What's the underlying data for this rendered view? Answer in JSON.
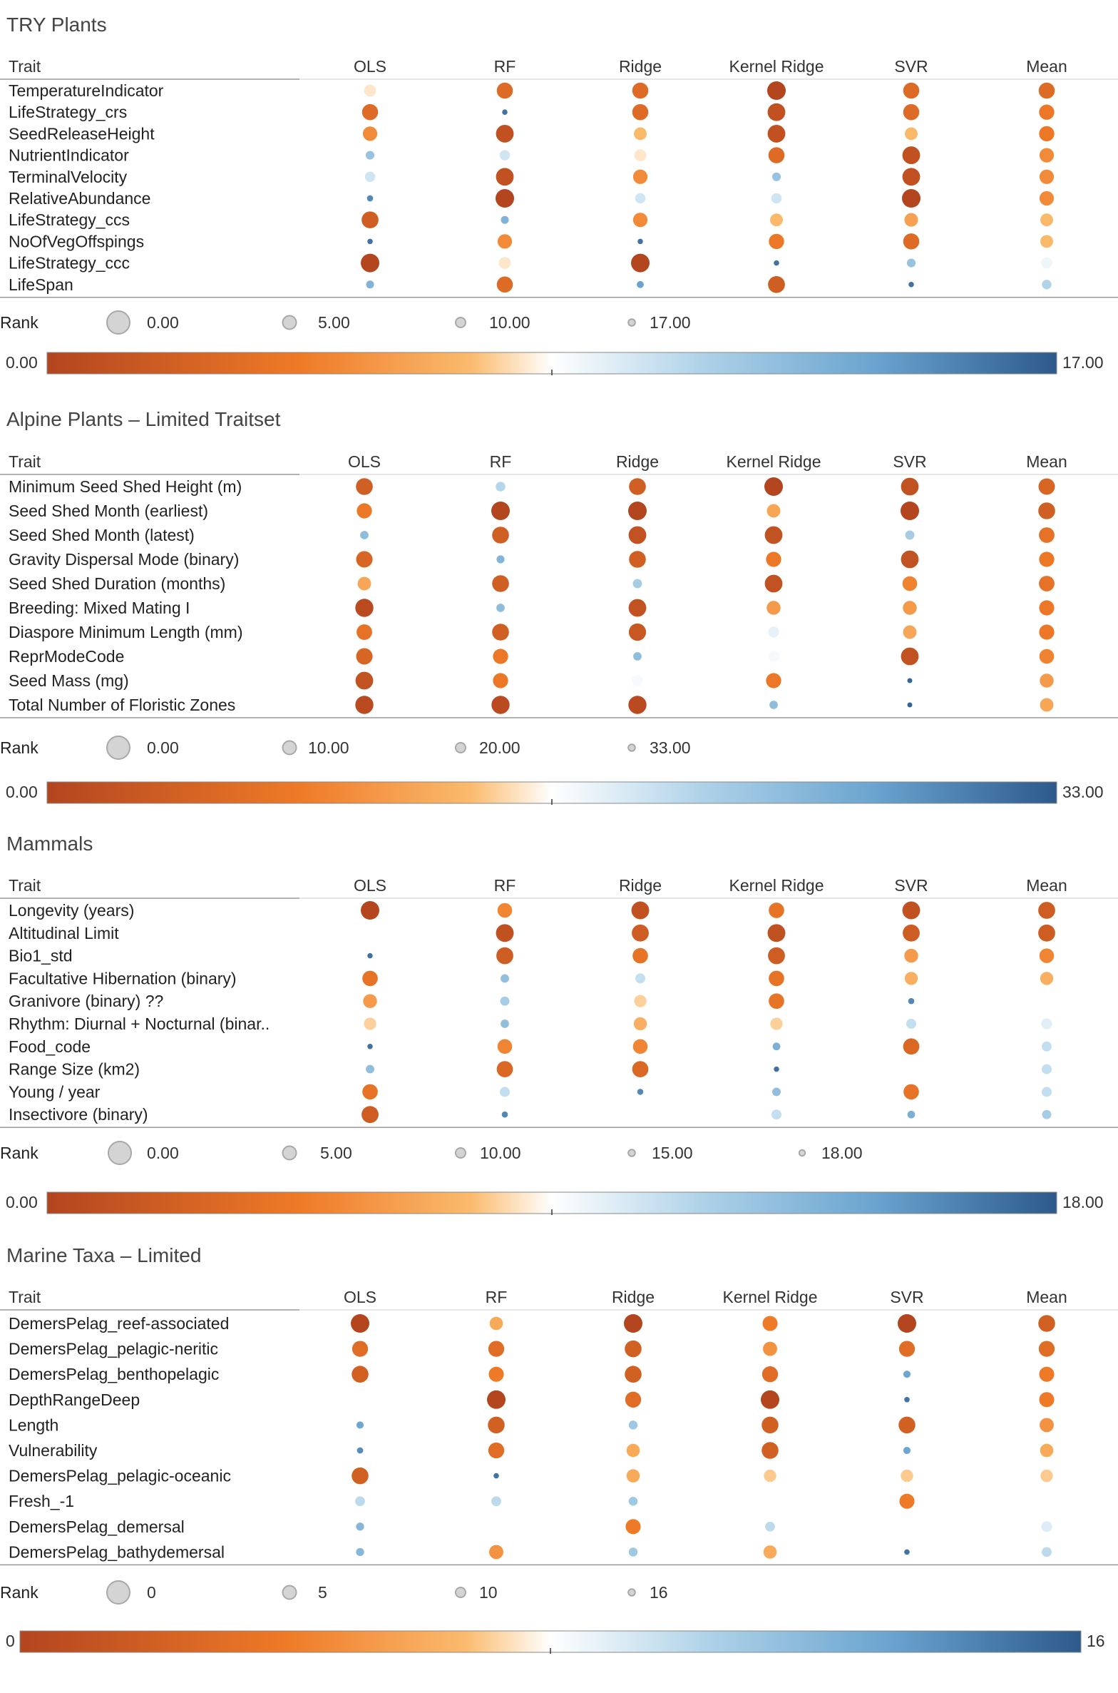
{
  "chart_data": [
    {
      "type": "table",
      "title": "TRY Plants",
      "header_trait": "Trait",
      "columns": [
        "OLS",
        "RF",
        "Ridge",
        "Kernel Ridge",
        "SVR",
        "Mean"
      ],
      "rows": [
        "TemperatureIndicator",
        "LifeStrategy_crs",
        "SeedReleaseHeight",
        "NutrientIndicator",
        "TerminalVelocity",
        "RelativeAbundance",
        "LifeStrategy_ccs",
        "NoOfVegOffspings",
        "LifeStrategy_ccc",
        "LifeSpan"
      ],
      "values": [
        [
          8,
          3,
          3,
          0,
          3,
          3
        ],
        [
          3,
          16,
          3,
          1,
          3,
          4
        ],
        [
          5,
          1,
          7,
          1,
          7,
          4
        ],
        [
          12,
          10,
          8,
          3,
          1,
          5
        ],
        [
          10,
          1,
          5,
          12,
          1,
          5
        ],
        [
          15,
          0,
          10,
          10,
          0,
          5
        ],
        [
          2,
          13,
          5,
          7,
          6,
          7
        ],
        [
          16,
          5,
          16,
          4,
          3,
          7
        ],
        [
          0,
          8,
          0,
          16,
          12,
          9
        ],
        [
          13,
          3,
          14,
          2,
          16,
          11
        ]
      ],
      "legend_label": "Rank",
      "size_legend": [
        "0.00",
        "5.00",
        "10.00",
        "17.00"
      ],
      "color_min_label": "0.00",
      "color_max_label": "17.00",
      "color_max": 17
    },
    {
      "type": "table",
      "title": "Alpine Plants – Limited Traitset",
      "header_trait": "Trait",
      "columns": [
        "OLS",
        "RF",
        "Ridge",
        "Kernel Ridge",
        "SVR",
        "Mean"
      ],
      "rows": [
        "Minimum Seed Shed Height (m)",
        "Seed Shed Month (earliest)",
        "Seed Shed Month (latest)",
        "Gravity Dispersal Mode (binary)",
        "Seed Shed Duration (months)",
        "Breeding: Mixed Mating I",
        "Diaspore Minimum Length (mm)",
        "ReprModeCode",
        "Seed Mass (mg)",
        "Total Number of Floristic Zones"
      ],
      "values": [
        [
          4,
          21,
          4,
          0,
          2,
          5
        ],
        [
          8,
          0,
          0,
          12,
          0,
          4
        ],
        [
          24,
          4,
          2,
          2,
          22,
          7
        ],
        [
          5,
          25,
          4,
          8,
          2,
          8
        ],
        [
          12,
          4,
          22,
          2,
          9,
          7
        ],
        [
          1,
          24,
          2,
          11,
          11,
          8
        ],
        [
          7,
          4,
          3,
          18,
          12,
          8
        ],
        [
          5,
          8,
          24,
          17,
          2,
          9
        ],
        [
          2,
          8,
          17,
          8,
          32,
          11
        ],
        [
          1,
          1,
          1,
          24,
          32,
          12
        ]
      ],
      "legend_label": "Rank",
      "size_legend": [
        "0.00",
        "10.00",
        "20.00",
        "33.00"
      ],
      "color_min_label": "0.00",
      "color_max_label": "33.00",
      "color_max": 33
    },
    {
      "type": "table",
      "title": "Mammals",
      "header_trait": "Trait",
      "columns": [
        "OLS",
        "RF",
        "Ridge",
        "Kernel Ridge",
        "SVR",
        "Mean"
      ],
      "rows": [
        "Longevity (years)",
        "Altitudinal Limit",
        "Bio1_std",
        "Facultative Hibernation (binary)",
        "Granivore (binary) ??",
        "Rhythm: Diurnal + Nocturnal (binar..",
        "Food_code",
        "Range Size (km2)",
        "Young / year",
        "Insectivore (binary)"
      ],
      "values": [
        [
          0,
          5,
          1,
          4,
          1,
          2
        ],
        [
          null,
          1,
          2,
          1,
          2,
          2
        ],
        [
          17,
          2,
          4,
          2,
          6,
          5
        ],
        [
          4,
          13,
          11,
          4,
          7,
          7
        ],
        [
          6,
          12,
          8,
          4,
          16,
          9
        ],
        [
          8,
          13,
          7,
          8,
          11,
          10
        ],
        [
          17,
          5,
          5,
          14,
          3,
          11
        ],
        [
          13,
          3,
          3,
          17,
          null,
          11
        ],
        [
          4,
          11,
          16,
          13,
          4,
          11
        ],
        [
          2,
          16,
          null,
          11,
          14,
          12
        ]
      ],
      "legend_label": "Rank",
      "size_legend": [
        "0.00",
        "5.00",
        "10.00",
        "15.00",
        "18.00"
      ],
      "color_min_label": "0.00",
      "color_max_label": "18.00",
      "color_max": 18
    },
    {
      "type": "table",
      "title": "Marine Taxa – Limited",
      "header_trait": "Trait",
      "columns": [
        "OLS",
        "RF",
        "Ridge",
        "Kernel Ridge",
        "SVR",
        "Mean"
      ],
      "rows": [
        "DemersPelag_reef-associated",
        "DemersPelag_pelagic-neritic",
        "DemersPelag_benthopelagic",
        "DepthRangeDeep",
        "Length",
        "Vulnerability",
        "DemersPelag_pelagic-oceanic",
        "Fresh_-1",
        "DemersPelag_demersal",
        "DemersPelag_bathydemersal"
      ],
      "values": [
        [
          0,
          6,
          0,
          4,
          0,
          2
        ],
        [
          3,
          3,
          2,
          5,
          3,
          3
        ],
        [
          2,
          4,
          2,
          3,
          13,
          4
        ],
        [
          null,
          0,
          3,
          0,
          15,
          4
        ],
        [
          13,
          2,
          11,
          2,
          2,
          5
        ],
        [
          14,
          3,
          6,
          2,
          13,
          6
        ],
        [
          2,
          15,
          6,
          7,
          7,
          7
        ],
        [
          10,
          10,
          11,
          null,
          4,
          null
        ],
        [
          12,
          null,
          4,
          10,
          null,
          9
        ],
        [
          12,
          5,
          11,
          6,
          15,
          10
        ]
      ],
      "legend_label": "Rank",
      "size_legend": [
        "0",
        "5",
        "10",
        "16"
      ],
      "color_min_label": "0",
      "color_max_label": "16",
      "color_max": 16
    }
  ]
}
